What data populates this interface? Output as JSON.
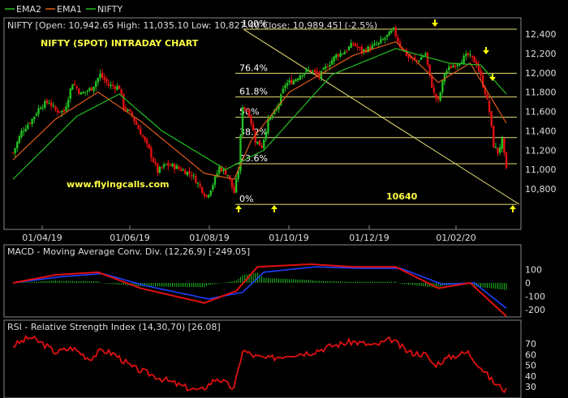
{
  "legend": {
    "items": [
      {
        "label": "EMA2",
        "color": "#22c022"
      },
      {
        "label": "EMA1",
        "color": "#e05a1a"
      },
      {
        "label": "NIFTY",
        "color": "#22c022"
      }
    ]
  },
  "price_panel": {
    "header": "NIFTY [Open: 10,942.65  High: 11,035.10  Low: 10,827.40  Close: 10,989.45] (-2.5%)",
    "chart_title": "NIFTY (SPOT) INTRADAY CHART",
    "watermark": "www.flyingcalls.com",
    "target_label": "10640",
    "fib_levels": [
      {
        "label": "100%",
        "value": 12450
      },
      {
        "label": "76.4%",
        "value": 11995
      },
      {
        "label": "61.8%",
        "value": 11750
      },
      {
        "label": "50%",
        "value": 11540
      },
      {
        "label": "38.2%",
        "value": 11330
      },
      {
        "label": "23.6%",
        "value": 11060
      },
      {
        "label": "0%",
        "value": 10640
      }
    ],
    "y_ticks": [
      "12,400",
      "12,200",
      "12,000",
      "11,800",
      "11,600",
      "11,400",
      "11,200",
      "11,000",
      "10,800"
    ],
    "y_tick_values": [
      12400,
      12200,
      12000,
      11800,
      11600,
      11400,
      11200,
      11000,
      10800
    ],
    "x_ticks": [
      "01/04/19",
      "01/06/19",
      "01/08/19",
      "01/10/19",
      "01/12/19",
      "01/02/20"
    ],
    "colors": {
      "up": "#22c022",
      "down": "#e01010",
      "fib": "#e8e070",
      "ema_slow": "#22c022",
      "ema_fast": "#e05a1a",
      "marker": "#ffff00",
      "text_yellow": "#ffff44"
    }
  },
  "macd_panel": {
    "header": "MACD - Moving Average Conv. Div. (12,26,9) [-249.05]",
    "y_ticks": [
      "100",
      "0",
      "-100",
      "-200"
    ],
    "y_tick_values": [
      100,
      0,
      -100,
      -200
    ],
    "colors": {
      "macd": "#e01010",
      "signal": "#2040ff",
      "hist": "#22c022"
    }
  },
  "rsi_panel": {
    "header": "RSI - Relative Strength Index (14,30,70) [26.08]",
    "y_ticks": [
      "70",
      "60",
      "50",
      "40",
      "30"
    ],
    "y_tick_values": [
      70,
      60,
      50,
      40,
      30
    ],
    "colors": {
      "rsi": "#e01010"
    }
  },
  "chart_data": [
    {
      "type": "candlestick",
      "series": [
        {
          "name": "NIFTY",
          "anchors": [
            [
              0,
              11170
            ],
            [
              4,
              11390
            ],
            [
              9,
              11520
            ],
            [
              13,
              11660
            ],
            [
              17,
              11700
            ],
            [
              20,
              11610
            ],
            [
              24,
              11600
            ],
            [
              28,
              11900
            ],
            [
              32,
              11780
            ],
            [
              37,
              11840
            ],
            [
              41,
              11980
            ],
            [
              45,
              11870
            ],
            [
              50,
              11850
            ],
            [
              52,
              11650
            ],
            [
              56,
              11550
            ],
            [
              60,
              11380
            ],
            [
              64,
              11200
            ],
            [
              68,
              10980
            ],
            [
              72,
              11050
            ],
            [
              76,
              11030
            ],
            [
              80,
              10990
            ],
            [
              84,
              10950
            ],
            [
              88,
              10820
            ],
            [
              91,
              10720
            ],
            [
              94,
              10850
            ],
            [
              97,
              11020
            ],
            [
              101,
              10950
            ],
            [
              104,
              10760
            ],
            [
              106,
              11000
            ],
            [
              108,
              11660
            ],
            [
              111,
              11580
            ],
            [
              114,
              11300
            ],
            [
              117,
              11240
            ],
            [
              120,
              11500
            ],
            [
              124,
              11620
            ],
            [
              128,
              11880
            ],
            [
              132,
              11920
            ],
            [
              136,
              12000
            ],
            [
              140,
              12030
            ],
            [
              144,
              11960
            ],
            [
              148,
              12080
            ],
            [
              152,
              12180
            ],
            [
              156,
              12220
            ],
            [
              160,
              12300
            ],
            [
              164,
              12220
            ],
            [
              168,
              12260
            ],
            [
              172,
              12300
            ],
            [
              176,
              12380
            ],
            [
              179,
              12440
            ],
            [
              182,
              12280
            ],
            [
              186,
              12160
            ],
            [
              190,
              12120
            ],
            [
              194,
              12200
            ],
            [
              196,
              11950
            ],
            [
              198,
              11780
            ],
            [
              200,
              11700
            ],
            [
              203,
              12000
            ],
            [
              206,
              12060
            ],
            [
              210,
              12120
            ],
            [
              214,
              12180
            ],
            [
              218,
              12100
            ],
            [
              222,
              11800
            ],
            [
              224,
              11600
            ],
            [
              226,
              11250
            ],
            [
              228,
              11180
            ],
            [
              230,
              11300
            ],
            [
              232,
              10990
            ]
          ]
        }
      ],
      "fibonacci": {
        "high": 12450,
        "low": 10640
      },
      "y_range": [
        10640,
        12520
      ]
    },
    {
      "type": "line",
      "series": [
        {
          "name": "EMA1",
          "anchors": [
            [
              0,
              11100
            ],
            [
              20,
              11520
            ],
            [
              40,
              11800
            ],
            [
              60,
              11500
            ],
            [
              90,
              10960
            ],
            [
              104,
              10900
            ],
            [
              112,
              11300
            ],
            [
              130,
              11800
            ],
            [
              160,
              12180
            ],
            [
              180,
              12320
            ],
            [
              200,
              11900
            ],
            [
              215,
              12100
            ],
            [
              232,
              11480
            ]
          ]
        },
        {
          "name": "EMA2",
          "anchors": [
            [
              0,
              10900
            ],
            [
              30,
              11550
            ],
            [
              50,
              11780
            ],
            [
              70,
              11400
            ],
            [
              100,
              11000
            ],
            [
              118,
              11200
            ],
            [
              150,
              11980
            ],
            [
              180,
              12250
            ],
            [
              205,
              12100
            ],
            [
              220,
              12080
            ],
            [
              232,
              11780
            ]
          ]
        }
      ]
    },
    {
      "type": "line",
      "title": "MACD",
      "series": [
        {
          "name": "MACD",
          "anchors": [
            [
              0,
              0
            ],
            [
              20,
              60
            ],
            [
              40,
              80
            ],
            [
              60,
              -40
            ],
            [
              90,
              -150
            ],
            [
              105,
              -60
            ],
            [
              115,
              120
            ],
            [
              140,
              140
            ],
            [
              160,
              120
            ],
            [
              180,
              120
            ],
            [
              200,
              -40
            ],
            [
              215,
              0
            ],
            [
              232,
              -249
            ]
          ]
        },
        {
          "name": "Signal",
          "anchors": [
            [
              0,
              0
            ],
            [
              22,
              45
            ],
            [
              42,
              70
            ],
            [
              62,
              -20
            ],
            [
              92,
              -120
            ],
            [
              108,
              -70
            ],
            [
              118,
              80
            ],
            [
              142,
              120
            ],
            [
              162,
              110
            ],
            [
              182,
              110
            ],
            [
              202,
              -10
            ],
            [
              217,
              0
            ],
            [
              232,
              -190
            ]
          ]
        }
      ],
      "y_range": [
        -260,
        170
      ]
    },
    {
      "type": "line",
      "title": "RSI",
      "series": [
        {
          "name": "RSI",
          "anchors": [
            [
              0,
              68
            ],
            [
              8,
              76
            ],
            [
              14,
              70
            ],
            [
              20,
              62
            ],
            [
              28,
              66
            ],
            [
              36,
              56
            ],
            [
              42,
              64
            ],
            [
              48,
              60
            ],
            [
              56,
              48
            ],
            [
              64,
              42
            ],
            [
              72,
              36
            ],
            [
              80,
              30
            ],
            [
              88,
              26
            ],
            [
              92,
              32
            ],
            [
              96,
              38
            ],
            [
              104,
              28
            ],
            [
              108,
              64
            ],
            [
              114,
              58
            ],
            [
              120,
              56
            ],
            [
              130,
              60
            ],
            [
              140,
              62
            ],
            [
              150,
              68
            ],
            [
              160,
              72
            ],
            [
              170,
              68
            ],
            [
              178,
              74
            ],
            [
              186,
              62
            ],
            [
              194,
              60
            ],
            [
              198,
              50
            ],
            [
              206,
              58
            ],
            [
              214,
              62
            ],
            [
              220,
              48
            ],
            [
              226,
              34
            ],
            [
              232,
              26
            ]
          ]
        }
      ],
      "y_range": [
        22,
        82
      ]
    }
  ]
}
